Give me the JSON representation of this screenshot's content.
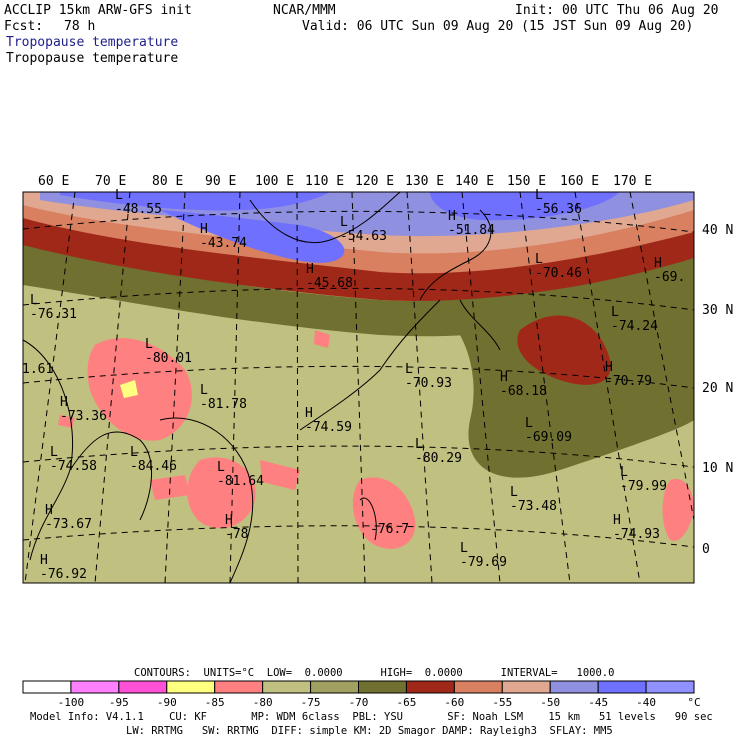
{
  "header": {
    "model": "ACCLIP 15km ARW-GFS init",
    "org": "NCAR/MMM",
    "init": "Init: 00 UTC Thu 06 Aug 20",
    "fcst_label": "Fcst:",
    "fcst_value": "78 h",
    "valid": "Valid: 06 UTC Sun 09 Aug 20 (15 JST Sun 09 Aug 20)",
    "field_title_1": "Tropopause temperature",
    "field_title_2": "Tropopause temperature"
  },
  "map": {
    "lon_labels": [
      "60 E",
      "70 E",
      "80 E",
      "90 E",
      "100 E",
      "110 E",
      "120 E",
      "130 E",
      "140 E",
      "150 E",
      "160 E",
      "170 E"
    ],
    "lat_labels": [
      "40 N",
      "30 N",
      "20 N",
      "10 N",
      "0"
    ],
    "extrema": [
      {
        "mark": "L",
        "value": "-48.55"
      },
      {
        "mark": "H",
        "value": "-43.74"
      },
      {
        "mark": "L",
        "value": "-54.63"
      },
      {
        "mark": "H",
        "value": "-45.68"
      },
      {
        "mark": "H",
        "value": "-51.84"
      },
      {
        "mark": "L",
        "value": "-56.36"
      },
      {
        "mark": "L",
        "value": "-70.46"
      },
      {
        "mark": "H",
        "value": "-69."
      },
      {
        "mark": "L",
        "value": "-76.31"
      },
      {
        "mark": "L",
        "value": "-80.01"
      },
      {
        "mark": "L",
        "value": "-74.24"
      },
      {
        "mark": "",
        "value": "1.61"
      },
      {
        "mark": "L",
        "value": "-70.93"
      },
      {
        "mark": "H",
        "value": "-68.18"
      },
      {
        "mark": "H",
        "value": "-70.79"
      },
      {
        "mark": "H",
        "value": "-73.36"
      },
      {
        "mark": "L",
        "value": "-81.78"
      },
      {
        "mark": "H",
        "value": "-74.59"
      },
      {
        "mark": "L",
        "value": "-69.09"
      },
      {
        "mark": "L",
        "value": "-74.58"
      },
      {
        "mark": "L",
        "value": "-84.46"
      },
      {
        "mark": "L",
        "value": "-80.29"
      },
      {
        "mark": "L",
        "value": "-81.64"
      },
      {
        "mark": "L",
        "value": "-79.99"
      },
      {
        "mark": "H",
        "value": "-73.67"
      },
      {
        "mark": "H",
        "value": "-78"
      },
      {
        "mark": "",
        "value": "-76.7"
      },
      {
        "mark": "L",
        "value": "-73.48"
      },
      {
        "mark": "H",
        "value": "-74.93"
      },
      {
        "mark": "H",
        "value": "-76.92"
      },
      {
        "mark": "L",
        "value": "-79.69"
      }
    ]
  },
  "contours": {
    "line": "CONTOURS:  UNITS=°C  LOW=  0.0000      HIGH=  0.0000      INTERVAL=   1000.0"
  },
  "colorbar": {
    "colors": [
      "#ffffff",
      "#ff80ff",
      "#ff50d8",
      "#ffff80",
      "#ff8080",
      "#c0c080",
      "#a0a060",
      "#707030",
      "#a02818",
      "#d88060",
      "#e0a890",
      "#9090e0",
      "#7070ff",
      "#9090ff"
    ],
    "tick_labels": [
      "-100",
      "-95",
      "-90",
      "-85",
      "-80",
      "-75",
      "-70",
      "-65",
      "-60",
      "-55",
      "-50",
      "-45",
      "-40",
      "°C"
    ]
  },
  "footer": {
    "line1": "Model Info: V4.1.1    CU: KF       MP: WDM 6class  PBL: YSU       SF: Noah LSM    15 km   51 levels   90 sec",
    "line2": "LW: RRTMG   SW: RRTMG  DIFF: simple KM: 2D Smagor DAMP: Rayleigh3  SFLAY: MM5"
  }
}
